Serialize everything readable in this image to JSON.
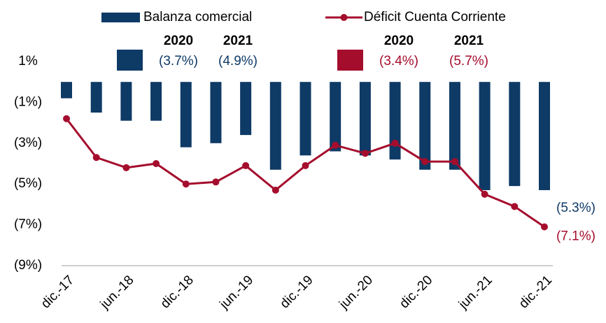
{
  "chart_data": {
    "type": "bar_line",
    "categories": [
      "dic.-17",
      null,
      "jun.-18",
      null,
      "dic.-18",
      null,
      "jun.-19",
      null,
      "dic.-19",
      null,
      "jun.-20",
      null,
      "dic.-20",
      null,
      "jun.-21",
      null,
      "dic.-21"
    ],
    "series": [
      {
        "name": "Balanza comercial",
        "type": "bar",
        "color": "#0e3a66",
        "values": [
          -0.8,
          -1.5,
          -1.9,
          -1.9,
          -3.2,
          -3.0,
          -2.6,
          -4.3,
          -3.6,
          -3.4,
          -3.6,
          -3.8,
          -4.3,
          -4.3,
          -5.3,
          -5.1,
          -5.3
        ],
        "end_label": "(5.3%)",
        "summary": {
          "years": [
            "2020",
            "2021"
          ],
          "labels": [
            "(3.7%)",
            "(4.9%)"
          ]
        }
      },
      {
        "name": "Déficit Cuenta Corriente",
        "type": "line",
        "color": "#a50d2d",
        "values": [
          -1.8,
          -3.7,
          -4.2,
          -4.0,
          -5.0,
          -4.9,
          -4.1,
          -5.3,
          -4.1,
          -3.1,
          -3.5,
          -3.0,
          -3.9,
          -3.9,
          -5.5,
          -6.1,
          -7.1
        ],
        "end_label": "(7.1%)",
        "summary": {
          "years": [
            "2020",
            "2021"
          ],
          "labels": [
            "(3.4%)",
            "(5.7%)"
          ]
        }
      }
    ],
    "ylim": [
      -9,
      1
    ],
    "yticks": [
      {
        "value": 1,
        "label": "1%"
      },
      {
        "value": -1,
        "label": "(1%)"
      },
      {
        "value": -3,
        "label": "(3%)"
      },
      {
        "value": -5,
        "label": "(5%)"
      },
      {
        "value": -7,
        "label": "(7%)"
      },
      {
        "value": -9,
        "label": "(9%)"
      }
    ]
  }
}
